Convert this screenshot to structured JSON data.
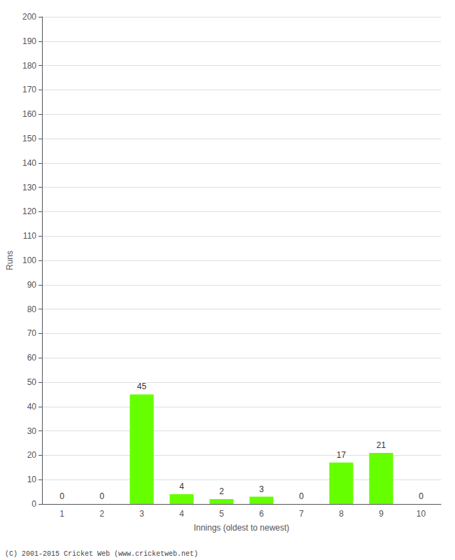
{
  "chart_data": {
    "type": "bar",
    "categories": [
      "1",
      "2",
      "3",
      "4",
      "5",
      "6",
      "7",
      "8",
      "9",
      "10"
    ],
    "values": [
      0,
      0,
      45,
      4,
      2,
      3,
      0,
      17,
      21,
      0
    ],
    "color": "#66ff00",
    "xlabel": "Innings (oldest to newest)",
    "ylabel": "Runs",
    "ylim": [
      0,
      200
    ],
    "yticks": [
      0,
      10,
      20,
      30,
      40,
      50,
      60,
      70,
      80,
      90,
      100,
      110,
      120,
      130,
      140,
      150,
      160,
      170,
      180,
      190,
      200
    ],
    "grid": true,
    "data_labels": true,
    "annotations": [
      "(C) 2001-2015 Cricket Web (www.cricketweb.net)"
    ]
  }
}
